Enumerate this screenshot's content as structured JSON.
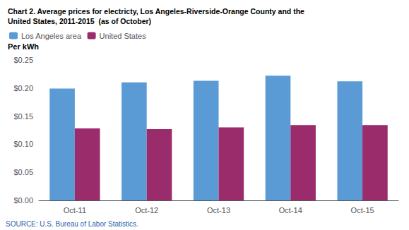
{
  "chart_data": {
    "type": "bar",
    "title": "Chart 2. Average prices for electricty, Los Angeles-Riverside-Orange County and the\nUnited States, 2011-2015  (as of October)",
    "y_label": "Per kWh",
    "annotations": [
      "SOURCE: U.S. Bureau of Labor Statistics."
    ],
    "categories": [
      "Oct-11",
      "Oct-12",
      "Oct-13",
      "Oct-14",
      "Oct-15"
    ],
    "series": [
      {
        "name": "Los Angeles area",
        "color": "#5B9BD5",
        "values": [
          0.199,
          0.21,
          0.213,
          0.222,
          0.212
        ]
      },
      {
        "name": "United States",
        "color": "#9B2C6B",
        "values": [
          0.128,
          0.127,
          0.13,
          0.134,
          0.134
        ]
      }
    ],
    "ylim": [
      0,
      0.25
    ],
    "yticks": [
      {
        "value": 0.0,
        "label": "$0.00"
      },
      {
        "value": 0.05,
        "label": "$0.05"
      },
      {
        "value": 0.1,
        "label": "$0.10"
      },
      {
        "value": 0.15,
        "label": "$0.15"
      },
      {
        "value": 0.2,
        "label": "$0.20"
      },
      {
        "value": 0.25,
        "label": "$0.25"
      }
    ],
    "grid": false,
    "legend": "upper left"
  }
}
